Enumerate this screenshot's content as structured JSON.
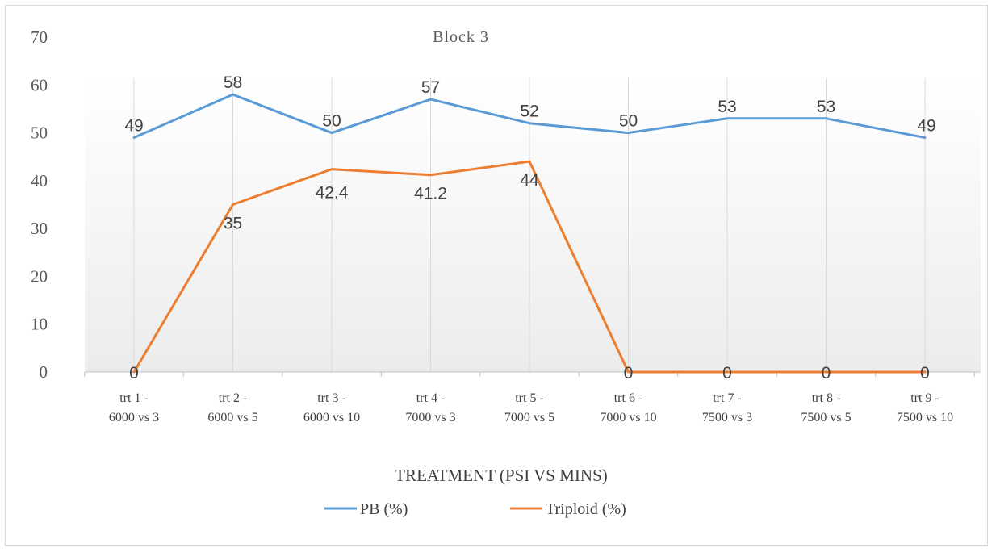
{
  "chart_data": {
    "type": "line",
    "title": "Block 3",
    "xlabel": "TREATMENT (PSI VS MINS)",
    "ylabel": "",
    "ylim": [
      0,
      70
    ],
    "yticks": [
      0,
      10,
      20,
      30,
      40,
      50,
      60,
      70
    ],
    "grid": "vertical",
    "legend_position": "bottom",
    "categories": [
      [
        "trt 1 -",
        "6000 vs 3"
      ],
      [
        "trt 2 -",
        "6000 vs 5"
      ],
      [
        "trt 3 -",
        "6000 vs 10"
      ],
      [
        "trt 4 -",
        "7000 vs 3"
      ],
      [
        "trt 5 -",
        "7000 vs 5"
      ],
      [
        "trt 6 -",
        "7000 vs 10"
      ],
      [
        "trt 7 -",
        "7500 vs 3"
      ],
      [
        "trt 8 -",
        "7500 vs 5"
      ],
      [
        "trt 9 -",
        "7500 vs 10"
      ]
    ],
    "series": [
      {
        "name": "PB (%)",
        "color": "#5b9bd5",
        "values": [
          49,
          58,
          50,
          57,
          52,
          50,
          53,
          53,
          49
        ],
        "labels": [
          "49",
          "58",
          "50",
          "57",
          "52",
          "50",
          "53",
          "53",
          "49"
        ]
      },
      {
        "name": "Triploid (%)",
        "color": "#ed7d31",
        "values": [
          0,
          35,
          42.4,
          41.2,
          44,
          0,
          0,
          0,
          0
        ],
        "labels": [
          "0",
          "35",
          "42.4",
          "41.2",
          "44",
          "0",
          "0",
          "0",
          "0"
        ]
      }
    ]
  }
}
